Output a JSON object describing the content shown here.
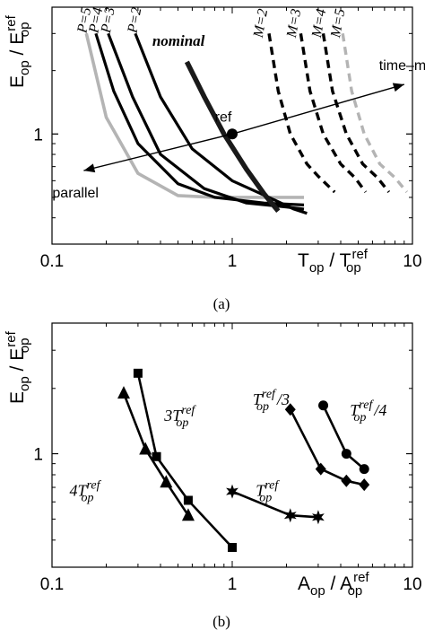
{
  "chart_data": [
    {
      "type": "line",
      "caption": "(a)",
      "xlabel": "T_op / T_op^ref",
      "ylabel": "E_op / E_op^ref",
      "xscale": "log",
      "yscale": "log",
      "xlim": [
        0.1,
        10
      ],
      "ylim": [
        0.3,
        4.0
      ],
      "xticks": [
        {
          "value": 0.1,
          "label": "0.1"
        },
        {
          "value": 1,
          "label": "1"
        },
        {
          "value": 10,
          "label": "10"
        }
      ],
      "yticks": [
        {
          "value": 1,
          "label": "1"
        }
      ],
      "series": [
        {
          "name": "P=5",
          "style": "gray",
          "points": [
            [
              0.155,
              3.0
            ],
            [
              0.2,
              1.2
            ],
            [
              0.3,
              0.65
            ],
            [
              0.5,
              0.51
            ],
            [
              0.8,
              0.5
            ],
            [
              1.5,
              0.5
            ],
            [
              2.5,
              0.5
            ]
          ]
        },
        {
          "name": "P=4",
          "style": "black",
          "points": [
            [
              0.175,
              3.0
            ],
            [
              0.22,
              1.6
            ],
            [
              0.3,
              0.9
            ],
            [
              0.5,
              0.58
            ],
            [
              0.8,
              0.5
            ],
            [
              1.5,
              0.47
            ],
            [
              2.5,
              0.46
            ]
          ]
        },
        {
          "name": "P=3",
          "style": "black",
          "points": [
            [
              0.205,
              3.0
            ],
            [
              0.28,
              1.5
            ],
            [
              0.4,
              0.8
            ],
            [
              0.7,
              0.55
            ],
            [
              1.2,
              0.47
            ],
            [
              2.0,
              0.45
            ],
            [
              2.5,
              0.44
            ]
          ]
        },
        {
          "name": "P=2",
          "style": "black",
          "points": [
            [
              0.29,
              3.0
            ],
            [
              0.4,
              1.5
            ],
            [
              0.6,
              0.85
            ],
            [
              1.0,
              0.6
            ],
            [
              1.6,
              0.5
            ],
            [
              2.2,
              0.44
            ],
            [
              2.6,
              0.42
            ]
          ]
        },
        {
          "name": "nominal",
          "style": "thick",
          "points": [
            [
              0.56,
              2.2
            ],
            [
              0.7,
              1.5
            ],
            [
              0.9,
              1.0
            ],
            [
              1.2,
              0.68
            ],
            [
              1.5,
              0.52
            ],
            [
              1.8,
              0.43
            ]
          ]
        },
        {
          "name": "M=2",
          "style": "dash",
          "points": [
            [
              1.6,
              3.0
            ],
            [
              1.8,
              1.6
            ],
            [
              2.1,
              1.0
            ],
            [
              2.6,
              0.72
            ],
            [
              3.0,
              0.63
            ],
            [
              3.7,
              0.53
            ]
          ]
        },
        {
          "name": "M=3",
          "style": "dash",
          "points": [
            [
              2.4,
              3.0
            ],
            [
              2.7,
              1.6
            ],
            [
              3.2,
              1.0
            ],
            [
              4.0,
              0.72
            ],
            [
              4.8,
              0.62
            ],
            [
              5.5,
              0.53
            ]
          ]
        },
        {
          "name": "M=4",
          "style": "dash",
          "points": [
            [
              3.2,
              3.0
            ],
            [
              3.6,
              1.6
            ],
            [
              4.3,
              1.0
            ],
            [
              5.3,
              0.72
            ],
            [
              6.4,
              0.62
            ],
            [
              7.4,
              0.53
            ]
          ]
        },
        {
          "name": "M=5",
          "style": "dashgray",
          "points": [
            [
              4.1,
              3.0
            ],
            [
              4.6,
              1.6
            ],
            [
              5.4,
              1.0
            ],
            [
              6.6,
              0.72
            ],
            [
              8.0,
              0.62
            ],
            [
              9.3,
              0.53
            ]
          ]
        }
      ],
      "reference_point": {
        "label": "ref",
        "x": 1,
        "y": 1
      },
      "arrows": [
        {
          "label": "time–mux",
          "from": [
            1.0,
            1.0
          ],
          "to": [
            9.0,
            1.72
          ]
        },
        {
          "label": "parallel",
          "from": [
            1.0,
            1.0
          ],
          "to": [
            0.15,
            0.67
          ]
        }
      ],
      "curve_labels": [
        {
          "text": "P=5",
          "x": 0.155,
          "y": 3.0
        },
        {
          "text": "P=4",
          "x": 0.18,
          "y": 3.0
        },
        {
          "text": "P=3",
          "x": 0.21,
          "y": 3.0
        },
        {
          "text": "P=2",
          "x": 0.295,
          "y": 3.0
        },
        {
          "text": "nominal",
          "x": 0.36,
          "y": 2.62
        },
        {
          "text": "M=2",
          "x": 1.47,
          "y": 2.85
        },
        {
          "text": "M=3",
          "x": 2.25,
          "y": 2.85
        },
        {
          "text": "M=4",
          "x": 3.1,
          "y": 2.85
        },
        {
          "text": "M=5",
          "x": 3.95,
          "y": 2.85
        }
      ]
    },
    {
      "type": "line",
      "caption": "(b)",
      "xlabel": "A_op / A_op^ref",
      "ylabel": "E_op / E_op^ref",
      "xscale": "log",
      "yscale": "log",
      "xlim": [
        0.1,
        10
      ],
      "ylim": [
        0.3,
        4.0
      ],
      "xticks": [
        {
          "value": 0.1,
          "label": "0.1"
        },
        {
          "value": 1,
          "label": "1"
        },
        {
          "value": 10,
          "label": "10"
        }
      ],
      "yticks": [
        {
          "value": 1,
          "label": "1"
        }
      ],
      "series": [
        {
          "name": "4T_op^ref",
          "marker": "triangle",
          "points": [
            [
              0.25,
              1.9
            ],
            [
              0.33,
              1.05
            ],
            [
              0.43,
              0.74
            ],
            [
              0.57,
              0.52
            ]
          ]
        },
        {
          "name": "3T_op^ref",
          "marker": "square",
          "points": [
            [
              0.3,
              2.35
            ],
            [
              0.38,
              0.97
            ],
            [
              0.57,
              0.61
            ],
            [
              1.0,
              0.37
            ]
          ]
        },
        {
          "name": "T_op^ref",
          "marker": "star",
          "points": [
            [
              1.0,
              0.67
            ],
            [
              2.1,
              0.52
            ],
            [
              3.0,
              0.51
            ]
          ]
        },
        {
          "name": "T_op^ref/3",
          "marker": "diamond",
          "points": [
            [
              2.1,
              1.6
            ],
            [
              3.1,
              0.85
            ],
            [
              4.3,
              0.75
            ],
            [
              5.4,
              0.72
            ]
          ]
        },
        {
          "name": "T_op^ref/4",
          "marker": "circle",
          "points": [
            [
              3.2,
              1.67
            ],
            [
              4.3,
              1.0
            ],
            [
              5.4,
              0.85
            ]
          ]
        }
      ],
      "curve_labels": [
        {
          "base": "4T",
          "sub": "op",
          "sup": "ref",
          "suffix": "",
          "x": 0.125,
          "y": 0.64
        },
        {
          "base": "3T",
          "sub": "op",
          "sup": "ref",
          "suffix": "",
          "x": 0.42,
          "y": 1.42
        },
        {
          "base": "T",
          "sub": "op",
          "sup": "ref",
          "suffix": "",
          "x": 1.35,
          "y": 0.64
        },
        {
          "base": "T",
          "sub": "op",
          "sup": "ref",
          "suffix": "/3",
          "x": 1.3,
          "y": 1.68
        },
        {
          "base": "T",
          "sub": "op",
          "sup": "ref",
          "suffix": "/4",
          "x": 4.5,
          "y": 1.5
        }
      ]
    }
  ]
}
